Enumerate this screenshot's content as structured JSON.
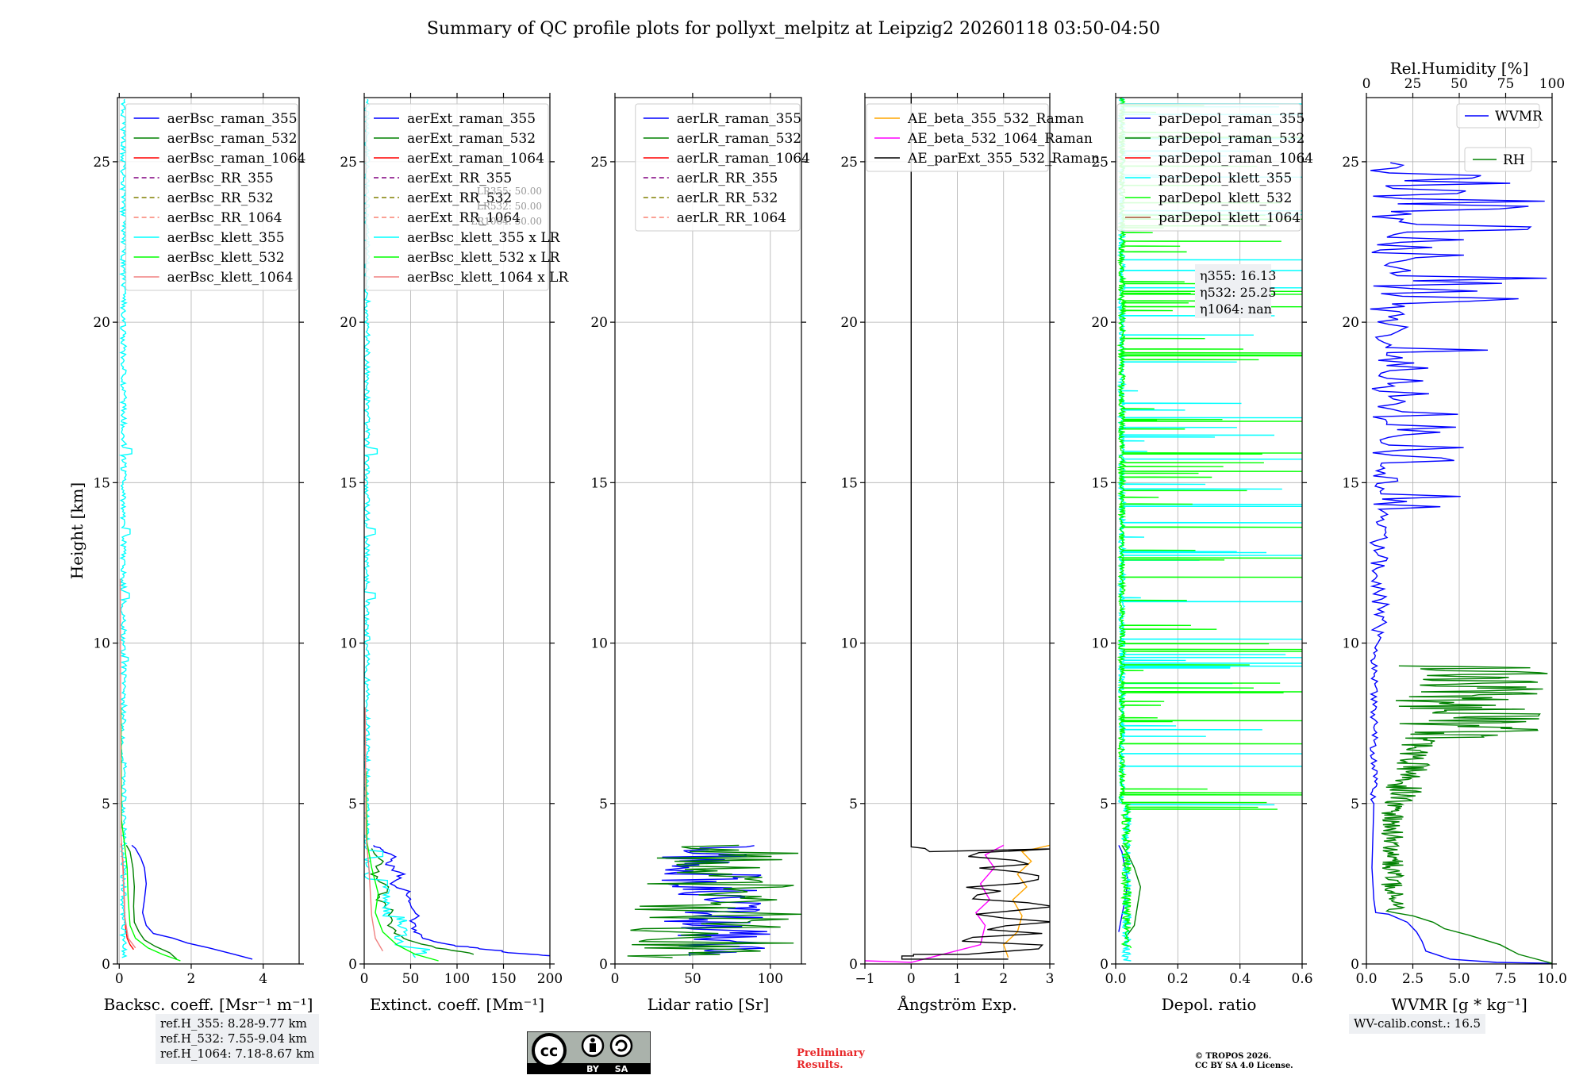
{
  "title": "Summary of QC profile plots for pollyxt_melpitz at Leipzig2 20260118 03:50-04:50",
  "colors": {
    "blue": "#0000ff",
    "green": "#008000",
    "red": "#ff0000",
    "purple": "#800080",
    "olive": "#808000",
    "salmon": "#fa8072",
    "cyan": "#00ffff",
    "lime": "#00ff00",
    "lightred": "#f08080",
    "orange": "#ffa500",
    "magenta": "#ff00ff",
    "black": "#000000",
    "brown": "#a0522d"
  },
  "chart_data": [
    {
      "type": "line",
      "id": "bsc",
      "ylabel": "Height [km]",
      "ylim": [
        0,
        27
      ],
      "yticks": [
        0,
        5,
        10,
        15,
        20,
        25
      ],
      "xlabel": "Backsc. coeff. [Msr⁻¹ m⁻¹]",
      "xlim": [
        -0.05,
        5
      ],
      "xticks": [
        0,
        2,
        4
      ],
      "xticklabels": [
        "0",
        "2",
        "4"
      ],
      "legend": "top-right",
      "series": [
        {
          "name": "aerBsc_raman_355",
          "color": "#0000ff",
          "points": [
            [
              3.7,
              0.15
            ],
            [
              3.2,
              0.3
            ],
            [
              2.5,
              0.5
            ],
            [
              1.9,
              0.65
            ],
            [
              1.5,
              0.8
            ],
            [
              0.95,
              0.95
            ],
            [
              0.75,
              1.2
            ],
            [
              0.65,
              1.6
            ],
            [
              0.7,
              2.0
            ],
            [
              0.75,
              2.5
            ],
            [
              0.7,
              3.0
            ],
            [
              0.6,
              3.3
            ],
            [
              0.45,
              3.6
            ],
            [
              0.35,
              3.7
            ]
          ]
        },
        {
          "name": "aerBsc_raman_532",
          "color": "#008000",
          "points": [
            [
              1.6,
              0.15
            ],
            [
              1.4,
              0.35
            ],
            [
              1.0,
              0.55
            ],
            [
              0.7,
              0.75
            ],
            [
              0.55,
              1.0
            ],
            [
              0.42,
              1.3
            ],
            [
              0.4,
              1.8
            ],
            [
              0.42,
              2.4
            ],
            [
              0.38,
              3.0
            ],
            [
              0.3,
              3.5
            ],
            [
              0.2,
              3.7
            ]
          ]
        },
        {
          "name": "aerBsc_raman_1064",
          "color": "#ff0000",
          "points": [
            [
              0.4,
              0.45
            ],
            [
              0.3,
              0.6
            ],
            [
              0.22,
              0.8
            ],
            [
              0.18,
              1.1
            ],
            [
              0.15,
              1.5
            ],
            [
              0.14,
              2.0
            ],
            [
              0.12,
              2.6
            ],
            [
              0.1,
              3.2
            ],
            [
              0.07,
              3.6
            ],
            [
              0.05,
              3.75
            ]
          ]
        },
        {
          "name": "aerBsc_RR_355",
          "color": "#800080",
          "dash": "6,4",
          "points": []
        },
        {
          "name": "aerBsc_RR_532",
          "color": "#808000",
          "dash": "6,4",
          "points": []
        },
        {
          "name": "aerBsc_RR_1064",
          "color": "#fa8072",
          "dash": "6,4",
          "points": []
        },
        {
          "name": "aerBsc_klett_355",
          "color": "#00ffff",
          "gen": {
            "kind": "noise",
            "from": 0.2,
            "to": 27,
            "base": 0.12,
            "amp": 0.08,
            "seed": 3,
            "step": 0.05,
            "spikes": [
              [
                11.5,
                0.28
              ],
              [
                13.5,
                0.3
              ],
              [
                16.0,
                0.35
              ],
              [
                9.5,
                0.25
              ]
            ]
          }
        },
        {
          "name": "aerBsc_klett_532",
          "color": "#00ff00",
          "points": [
            [
              1.7,
              0.1
            ],
            [
              1.2,
              0.3
            ],
            [
              0.8,
              0.5
            ],
            [
              0.45,
              0.8
            ],
            [
              0.3,
              1.2
            ],
            [
              0.25,
              2.0
            ],
            [
              0.22,
              3.0
            ],
            [
              0.15,
              3.7
            ],
            [
              0.06,
              4.5
            ],
            [
              0.05,
              8
            ]
          ]
        },
        {
          "name": "aerBsc_klett_1064",
          "color": "#f08080",
          "points": [
            [
              0.45,
              0.5
            ],
            [
              0.25,
              0.8
            ],
            [
              0.15,
              1.5
            ],
            [
              0.1,
              3.0
            ],
            [
              0.05,
              4.0
            ],
            [
              0.03,
              12
            ]
          ]
        }
      ]
    },
    {
      "type": "line",
      "id": "ext",
      "ylim": [
        0,
        27
      ],
      "yticks": [
        0,
        5,
        10,
        15,
        20,
        25
      ],
      "xlabel": "Extinct. coeff. [Mm⁻¹]",
      "xlim": [
        0,
        200
      ],
      "xticks": [
        0,
        50,
        100,
        150,
        200
      ],
      "xticklabels": [
        "0",
        "50",
        "100",
        "150",
        "200"
      ],
      "legend": "top-right",
      "lr_note": [
        "LR355: 50.00",
        "LR532: 50.00",
        "LR1064: 50.00"
      ],
      "series": [
        {
          "name": "aerExt_raman_355",
          "color": "#0000ff",
          "gen": {
            "kind": "jag",
            "pts": [
              [
                200,
                0.25
              ],
              [
                160,
                0.35
              ],
              [
                120,
                0.5
              ],
              [
                90,
                0.6
              ],
              [
                60,
                0.85
              ],
              [
                50,
                1.1
              ],
              [
                55,
                1.5
              ],
              [
                45,
                1.9
              ],
              [
                50,
                2.2
              ],
              [
                30,
                2.5
              ],
              [
                40,
                2.8
              ],
              [
                25,
                3.1
              ],
              [
                35,
                3.3
              ],
              [
                20,
                3.5
              ],
              [
                10,
                3.7
              ]
            ],
            "amp": 10,
            "seed": 5
          }
        },
        {
          "name": "aerExt_raman_532",
          "color": "#008000",
          "gen": {
            "kind": "jag",
            "pts": [
              [
                120,
                0.3
              ],
              [
                80,
                0.5
              ],
              [
                40,
                0.8
              ],
              [
                25,
                1.2
              ],
              [
                30,
                1.6
              ],
              [
                15,
                2.0
              ],
              [
                25,
                2.4
              ],
              [
                10,
                2.8
              ],
              [
                20,
                3.2
              ],
              [
                8,
                3.6
              ]
            ],
            "amp": 8,
            "seed": 9
          }
        },
        {
          "name": "aerExt_raman_1064",
          "color": "#ff0000",
          "points": []
        },
        {
          "name": "aerExt_RR_355",
          "color": "#800080",
          "dash": "6,4",
          "points": []
        },
        {
          "name": "aerExt_RR_532",
          "color": "#808000",
          "dash": "6,4",
          "points": []
        },
        {
          "name": "aerExt_RR_1064",
          "color": "#fa8072",
          "dash": "6,4",
          "points": []
        },
        {
          "name": "aerBsc_klett_355 x LR",
          "color": "#00ffff",
          "gen": {
            "kind": "noise",
            "from": 0.2,
            "to": 27,
            "base": 3,
            "amp": 3,
            "seed": 11,
            "step": 0.05,
            "spikes": [
              [
                2.5,
                25
              ],
              [
                3.4,
                20
              ],
              [
                11.5,
                12
              ],
              [
                13.5,
                12
              ],
              [
                16,
                14
              ]
            ],
            "low": [
              [
                0.5,
                60
              ],
              [
                1.0,
                40
              ],
              [
                2.0,
                25
              ]
            ]
          }
        },
        {
          "name": "aerBsc_klett_532 x LR",
          "color": "#00ff00",
          "points": [
            [
              80,
              0.1
            ],
            [
              55,
              0.3
            ],
            [
              35,
              0.6
            ],
            [
              20,
              1.0
            ],
            [
              12,
              1.6
            ],
            [
              15,
              2.2
            ],
            [
              8,
              3.0
            ],
            [
              3,
              3.8
            ],
            [
              2,
              6
            ]
          ]
        },
        {
          "name": "aerBsc_klett_1064 x LR",
          "color": "#f08080",
          "points": [
            [
              20,
              0.4
            ],
            [
              12,
              0.8
            ],
            [
              8,
              1.5
            ],
            [
              5,
              3.0
            ],
            [
              2,
              4.0
            ],
            [
              1,
              8
            ]
          ]
        }
      ]
    },
    {
      "type": "line",
      "id": "lr",
      "ylim": [
        0,
        27
      ],
      "yticks": [
        0,
        5,
        10,
        15,
        20,
        25
      ],
      "xlabel": "Lidar ratio [Sr]",
      "xlim": [
        0,
        120
      ],
      "xticks": [
        0,
        50,
        100
      ],
      "xticklabels": [
        "0",
        "50",
        "100"
      ],
      "legend": "top-right",
      "series": [
        {
          "name": "aerLR_raman_355",
          "color": "#0000ff",
          "gen": {
            "kind": "zig",
            "from": 0.25,
            "to": 3.7,
            "lo": 30,
            "hi": 100,
            "seed": 21,
            "step": 0.04
          }
        },
        {
          "name": "aerLR_raman_532",
          "color": "#008000",
          "gen": {
            "kind": "zig",
            "from": 0.2,
            "to": 3.7,
            "lo": 5,
            "hi": 120,
            "seed": 27,
            "step": 0.05
          }
        },
        {
          "name": "aerLR_raman_1064",
          "color": "#ff0000",
          "points": []
        },
        {
          "name": "aerLR_RR_355",
          "color": "#800080",
          "dash": "6,4",
          "points": []
        },
        {
          "name": "aerLR_RR_532",
          "color": "#808000",
          "dash": "6,4",
          "points": []
        },
        {
          "name": "aerLR_RR_1064",
          "color": "#fa8072",
          "dash": "6,4",
          "points": []
        }
      ]
    },
    {
      "type": "line",
      "id": "ae",
      "ylim": [
        0,
        27
      ],
      "yticks": [
        0,
        5,
        10,
        15,
        20,
        25
      ],
      "xlabel": "Ångström Exp.",
      "xlim": [
        -1,
        3
      ],
      "xticks": [
        -1,
        0,
        1,
        2,
        3
      ],
      "xticklabels": [
        "−1",
        "0",
        "1",
        "2",
        "3"
      ],
      "legend": "top-right",
      "series": [
        {
          "name": "AE_beta_355_532_Raman",
          "color": "#ffa500",
          "points": [
            [
              2.1,
              0.2
            ],
            [
              2.0,
              0.6
            ],
            [
              2.3,
              1.0
            ],
            [
              2.4,
              1.5
            ],
            [
              2.2,
              2.0
            ],
            [
              2.5,
              2.4
            ],
            [
              2.3,
              2.8
            ],
            [
              2.6,
              3.2
            ],
            [
              2.4,
              3.5
            ],
            [
              3.0,
              3.7
            ]
          ]
        },
        {
          "name": "AE_beta_532_1064_Raman",
          "color": "#ff00ff",
          "points": [
            [
              -1,
              0.1
            ],
            [
              0,
              0.05
            ],
            [
              1.5,
              0.6
            ],
            [
              1.6,
              1.2
            ],
            [
              1.4,
              1.6
            ],
            [
              1.7,
              2.0
            ],
            [
              1.5,
              2.5
            ],
            [
              1.8,
              3.0
            ],
            [
              1.6,
              3.4
            ],
            [
              2.0,
              3.7
            ]
          ]
        },
        {
          "name": "AE_parExt_355_532_Raman",
          "color": "#000000",
          "gen": {
            "kind": "ae",
            "seed": 33
          }
        }
      ]
    },
    {
      "type": "line",
      "id": "depol",
      "ylim": [
        0,
        27
      ],
      "yticks": [
        0,
        5,
        10,
        15,
        20,
        25
      ],
      "xlabel": "Depol. ratio",
      "xlim": [
        0,
        0.6
      ],
      "xticks": [
        0,
        0.2,
        0.4,
        0.6
      ],
      "xticklabels": [
        "0.0",
        "0.2",
        "0.4",
        "0.6"
      ],
      "legend": "top-right",
      "eta": [
        "η355: 16.13",
        "η532: 25.25",
        "η1064: nan"
      ],
      "series": [
        {
          "name": "parDepol_raman_355",
          "color": "#0000ff",
          "points": [
            [
              0.01,
              1.0
            ],
            [
              0.02,
              1.5
            ],
            [
              0.03,
              2.0
            ],
            [
              0.04,
              2.6
            ],
            [
              0.03,
              3.0
            ],
            [
              0.02,
              3.5
            ],
            [
              0.01,
              3.7
            ]
          ]
        },
        {
          "name": "parDepol_raman_532",
          "color": "#008000",
          "points": [
            [
              0.03,
              0.8
            ],
            [
              0.06,
              1.2
            ],
            [
              0.07,
              1.8
            ],
            [
              0.08,
              2.4
            ],
            [
              0.06,
              3.0
            ],
            [
              0.04,
              3.4
            ],
            [
              0.02,
              3.7
            ]
          ]
        },
        {
          "name": "parDepol_raman_1064",
          "color": "#ff0000",
          "points": []
        },
        {
          "name": "parDepol_klett_355",
          "color": "#00ffff",
          "gen": {
            "kind": "spiky",
            "seed": 41,
            "from": 0.1,
            "to": 27,
            "maxx": 0.6,
            "dense": 7.0
          }
        },
        {
          "name": "parDepol_klett_532",
          "color": "#00ff00",
          "gen": {
            "kind": "spiky",
            "seed": 47,
            "from": 0.5,
            "to": 27,
            "maxx": 0.6,
            "dense": 6.5
          }
        },
        {
          "name": "parDepol_klett_1064",
          "color": "#a0522d",
          "points": []
        }
      ]
    },
    {
      "type": "line",
      "id": "wv",
      "ylim": [
        0,
        27
      ],
      "yticks": [
        0,
        5,
        10,
        15,
        20,
        25
      ],
      "xlabel": "WVMR [g * kg⁻¹]",
      "xlim": [
        0,
        10
      ],
      "xticks": [
        0,
        2.5,
        5,
        7.5,
        10
      ],
      "xticklabels": [
        "0.0",
        "2.5",
        "5.0",
        "7.5",
        "10.0"
      ],
      "top_xlabel": "Rel.Humidity [%]",
      "top_xlim": [
        0,
        100
      ],
      "top_xticks": [
        0,
        25,
        50,
        75,
        100
      ],
      "top_xticklabels": [
        "0",
        "25",
        "50",
        "75",
        "100"
      ],
      "series": [
        {
          "name": "WVMR",
          "color": "#0000ff",
          "gen": {
            "kind": "wv",
            "seed": 51
          }
        },
        {
          "name": "RH",
          "color": "#008000",
          "gen": {
            "kind": "rh",
            "seed": 57
          }
        }
      ]
    }
  ],
  "info": {
    "refh": [
      "ref.H_355: 8.28-9.77 km",
      "ref.H_532: 7.55-9.04 km",
      "ref.H_1064: 7.18-8.67 km"
    ],
    "wvcalib": "WV-calib.const.: 16.5",
    "prelim": [
      "Preliminary",
      "Results."
    ],
    "copyright": [
      "© TROPOS 2026.",
      "CC BY SA 4.0 License."
    ],
    "cc_labels": [
      "cc",
      "BY",
      "SA"
    ]
  }
}
